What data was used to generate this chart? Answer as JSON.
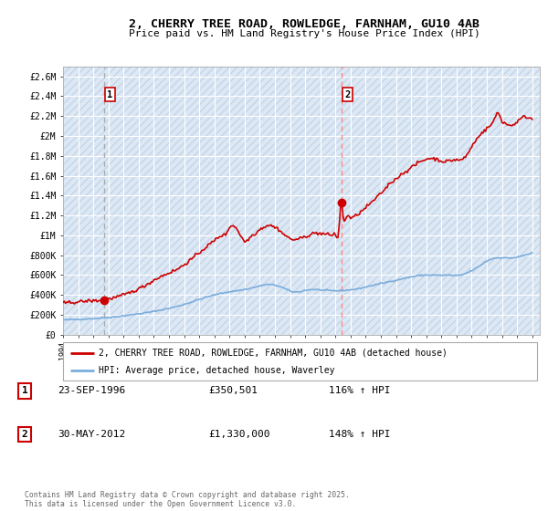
{
  "title_line1": "2, CHERRY TREE ROAD, ROWLEDGE, FARNHAM, GU10 4AB",
  "title_line2": "Price paid vs. HM Land Registry's House Price Index (HPI)",
  "xlim_start": 1994.0,
  "xlim_end": 2025.5,
  "ylim": [
    0,
    2700000
  ],
  "yticks": [
    0,
    200000,
    400000,
    600000,
    800000,
    1000000,
    1200000,
    1400000,
    1600000,
    1800000,
    2000000,
    2200000,
    2400000,
    2600000
  ],
  "ytick_labels": [
    "£0",
    "£200K",
    "£400K",
    "£600K",
    "£800K",
    "£1M",
    "£1.2M",
    "£1.4M",
    "£1.6M",
    "£1.8M",
    "£2M",
    "£2.2M",
    "£2.4M",
    "£2.6M"
  ],
  "sale_dates": [
    1996.728,
    2012.413
  ],
  "sale_prices": [
    350501,
    1330000
  ],
  "sale_labels": [
    "1",
    "2"
  ],
  "sale1_vline_color": "#aaaaaa",
  "sale2_vline_color": "#ff8888",
  "hpi_line_color": "#7aaddc",
  "price_line_color": "#cc0000",
  "background_color": "#ffffff",
  "plot_bg_color": "#dde8f5",
  "hatch_color": "#c5d5e8",
  "grid_color": "#ffffff",
  "legend_label_red": "2, CHERRY TREE ROAD, ROWLEDGE, FARNHAM, GU10 4AB (detached house)",
  "legend_label_blue": "HPI: Average price, detached house, Waverley",
  "note1_label": "1",
  "note1_date": "23-SEP-1996",
  "note1_price": "£350,501",
  "note1_hpi": "116% ↑ HPI",
  "note2_label": "2",
  "note2_date": "30-MAY-2012",
  "note2_price": "£1,330,000",
  "note2_hpi": "148% ↑ HPI",
  "copyright_text": "Contains HM Land Registry data © Crown copyright and database right 2025.\nThis data is licensed under the Open Government Licence v3.0."
}
